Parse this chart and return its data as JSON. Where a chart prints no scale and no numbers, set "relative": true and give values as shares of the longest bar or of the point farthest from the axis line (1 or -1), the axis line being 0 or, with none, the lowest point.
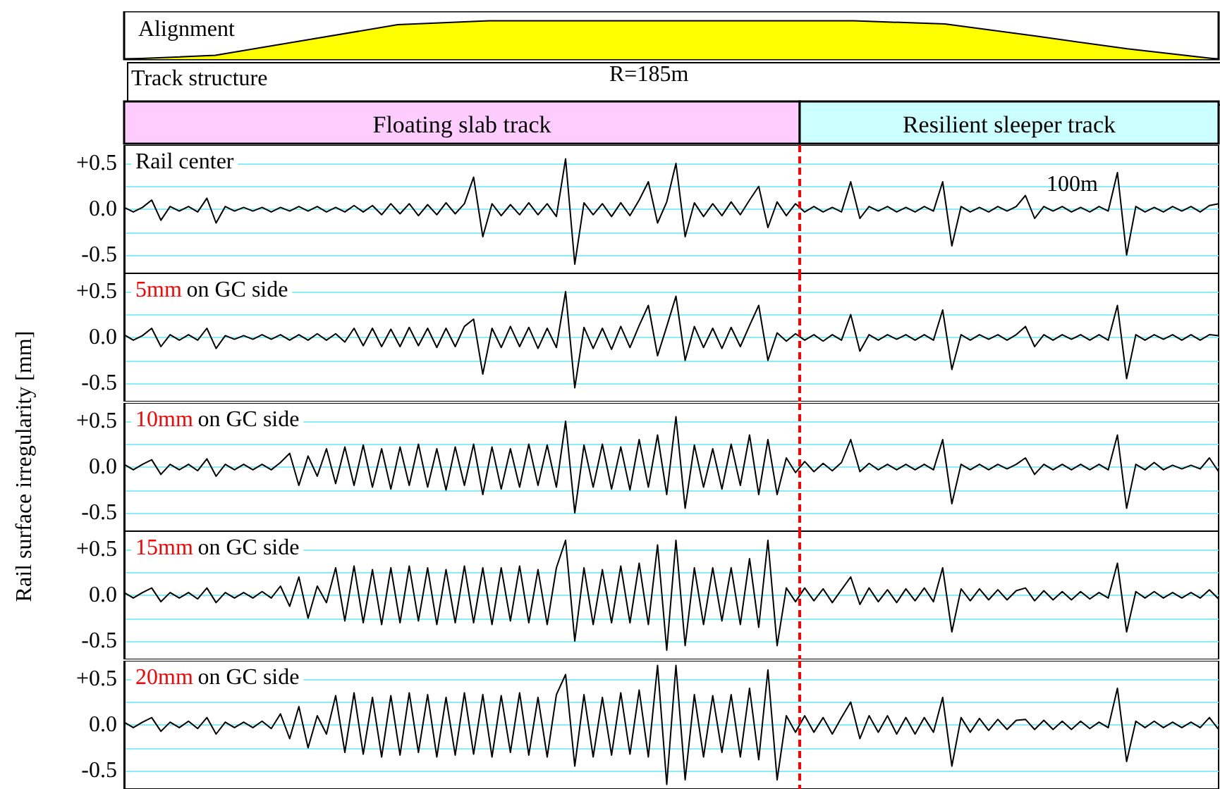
{
  "chart_data": [
    {
      "type": "area",
      "relative": true,
      "categories": [
        null,
        null,
        null,
        null,
        null,
        null,
        null,
        null,
        null,
        null,
        null,
        null,
        null
      ],
      "values": [
        0,
        0.1,
        0.5,
        0.9,
        1,
        1,
        1,
        1,
        1,
        0.92,
        0.6,
        0.27,
        0
      ],
      "color": "#ffff00",
      "annotations": [
        "Alignment",
        "Track structure",
        "R=185m",
        "Floating slab track",
        "Resilient sleeper track"
      ]
    },
    {
      "type": "line",
      "subtitle": "Rail center",
      "annotations": [
        "100m"
      ],
      "categories": [
        null,
        null,
        null,
        null,
        null,
        null,
        null,
        null,
        null,
        null,
        null,
        null,
        null,
        null,
        null,
        null,
        null,
        null,
        null,
        null,
        null,
        null,
        null,
        null,
        null,
        null,
        null,
        null,
        null,
        null,
        null,
        null,
        null,
        null,
        null,
        null,
        null,
        null,
        null,
        null,
        null,
        null,
        null,
        null,
        null,
        null,
        null,
        null,
        null,
        null,
        null,
        null,
        null,
        null,
        null,
        null,
        null,
        null,
        null,
        null,
        null,
        null,
        null,
        null,
        null,
        null,
        null,
        null,
        null,
        null,
        null,
        null,
        null,
        null,
        null,
        null,
        null,
        null,
        null,
        null,
        null,
        null,
        null,
        null,
        null,
        null,
        null,
        null,
        null,
        null,
        null,
        null,
        null,
        null,
        null,
        null,
        null,
        null,
        null,
        null,
        null,
        null,
        null,
        null,
        null,
        null,
        null,
        null,
        null,
        null,
        null,
        null,
        null,
        null,
        null,
        null,
        null,
        null,
        null,
        null
      ],
      "series": [
        {
          "color": "#000000",
          "values": [
            0.02,
            -0.03,
            0.02,
            0.1,
            -0.12,
            0.03,
            -0.02,
            0.03,
            -0.03,
            0.12,
            -0.15,
            0.03,
            -0.02,
            0.02,
            -0.02,
            0.02,
            -0.03,
            0.02,
            -0.02,
            0.03,
            -0.02,
            0.03,
            -0.03,
            0.02,
            -0.03,
            0.04,
            -0.03,
            0.04,
            -0.06,
            0.06,
            -0.05,
            0.06,
            -0.07,
            0.05,
            -0.06,
            0.07,
            -0.05,
            0.06,
            0.35,
            -0.3,
            0.06,
            -0.07,
            0.05,
            -0.06,
            0.07,
            -0.06,
            0.06,
            -0.08,
            0.55,
            -0.6,
            0.07,
            -0.06,
            0.06,
            -0.08,
            0.07,
            -0.07,
            0.1,
            0.3,
            -0.15,
            0.08,
            0.5,
            -0.3,
            0.07,
            -0.08,
            0.06,
            -0.07,
            0.08,
            -0.06,
            0.1,
            0.25,
            -0.2,
            0.08,
            -0.07,
            0.06,
            -0.03,
            0.03,
            -0.03,
            0.02,
            -0.03,
            0.3,
            -0.1,
            0.03,
            -0.02,
            0.03,
            -0.03,
            0.02,
            -0.03,
            0.03,
            -0.02,
            0.3,
            -0.4,
            0.03,
            -0.03,
            0.02,
            -0.03,
            0.03,
            -0.02,
            0.03,
            0.15,
            -0.1,
            0.03,
            -0.02,
            0.03,
            -0.03,
            0.02,
            -0.03,
            0.03,
            -0.02,
            0.4,
            -0.5,
            0.03,
            -0.03,
            0.02,
            -0.03,
            0.03,
            -0.02,
            0.03,
            -0.03,
            0.04,
            0.06
          ]
        }
      ],
      "ylim": [
        -0.7,
        0.7
      ],
      "yticks": [
        {
          "value": -0.5,
          "label": "-0.5"
        },
        {
          "value": -0.25,
          "label": null
        },
        {
          "value": 0,
          "label": "0.0"
        },
        {
          "value": 0.25,
          "label": null
        },
        {
          "value": 0.5,
          "label": "+0.5"
        }
      ],
      "grid": "y"
    },
    {
      "type": "line",
      "title": "5mm",
      "subtitle": "on GC side",
      "categories": [
        null,
        null,
        null,
        null,
        null,
        null,
        null,
        null,
        null,
        null,
        null,
        null,
        null,
        null,
        null,
        null,
        null,
        null,
        null,
        null,
        null,
        null,
        null,
        null,
        null,
        null,
        null,
        null,
        null,
        null,
        null,
        null,
        null,
        null,
        null,
        null,
        null,
        null,
        null,
        null,
        null,
        null,
        null,
        null,
        null,
        null,
        null,
        null,
        null,
        null,
        null,
        null,
        null,
        null,
        null,
        null,
        null,
        null,
        null,
        null,
        null,
        null,
        null,
        null,
        null,
        null,
        null,
        null,
        null,
        null,
        null,
        null,
        null,
        null,
        null,
        null,
        null,
        null,
        null,
        null,
        null,
        null,
        null,
        null,
        null,
        null,
        null,
        null,
        null,
        null,
        null,
        null,
        null,
        null,
        null,
        null,
        null,
        null,
        null,
        null,
        null,
        null,
        null,
        null,
        null,
        null,
        null,
        null,
        null,
        null,
        null,
        null,
        null,
        null,
        null,
        null,
        null,
        null,
        null,
        null
      ],
      "series": [
        {
          "color": "#000000",
          "values": [
            0.03,
            -0.03,
            0.02,
            0.1,
            -0.1,
            0.03,
            -0.03,
            0.03,
            -0.03,
            0.1,
            -0.12,
            0.02,
            -0.02,
            0.02,
            -0.02,
            0.03,
            -0.02,
            0.03,
            -0.03,
            0.03,
            -0.03,
            0.04,
            -0.03,
            0.04,
            -0.05,
            0.1,
            -0.09,
            0.1,
            -0.1,
            0.09,
            -0.1,
            0.11,
            -0.09,
            0.1,
            -0.11,
            0.1,
            -0.1,
            0.12,
            0.2,
            -0.4,
            0.1,
            -0.11,
            0.12,
            -0.1,
            0.11,
            -0.12,
            0.1,
            -0.11,
            0.5,
            -0.55,
            0.11,
            -0.12,
            0.1,
            -0.13,
            0.12,
            -0.11,
            0.13,
            0.35,
            -0.2,
            0.12,
            0.45,
            -0.25,
            0.12,
            -0.11,
            0.1,
            -0.12,
            0.11,
            -0.1,
            0.13,
            0.35,
            -0.25,
            0.05,
            -0.04,
            0.04,
            -0.03,
            0.03,
            -0.04,
            0.03,
            -0.03,
            0.25,
            -0.15,
            0.03,
            -0.03,
            0.03,
            -0.02,
            0.03,
            -0.03,
            0.03,
            -0.03,
            0.3,
            -0.35,
            0.03,
            -0.03,
            0.03,
            -0.02,
            0.03,
            -0.03,
            0.03,
            0.12,
            -0.1,
            0.03,
            -0.03,
            0.03,
            -0.02,
            0.03,
            -0.03,
            0.03,
            -0.03,
            0.35,
            -0.45,
            0.03,
            -0.03,
            0.03,
            -0.02,
            0.03,
            -0.03,
            0.03,
            -0.03,
            0.03,
            0.02
          ]
        }
      ],
      "ylim": [
        -0.7,
        0.7
      ],
      "yticks": [
        {
          "value": -0.5,
          "label": "-0.5"
        },
        {
          "value": -0.25,
          "label": null
        },
        {
          "value": 0,
          "label": "0.0"
        },
        {
          "value": 0.25,
          "label": null
        },
        {
          "value": 0.5,
          "label": "+0.5"
        }
      ],
      "grid": "y"
    },
    {
      "type": "line",
      "title": "10mm",
      "subtitle": "on GC side",
      "ylabel": "Rail surface irregularity [mm]",
      "categories": [
        null,
        null,
        null,
        null,
        null,
        null,
        null,
        null,
        null,
        null,
        null,
        null,
        null,
        null,
        null,
        null,
        null,
        null,
        null,
        null,
        null,
        null,
        null,
        null,
        null,
        null,
        null,
        null,
        null,
        null,
        null,
        null,
        null,
        null,
        null,
        null,
        null,
        null,
        null,
        null,
        null,
        null,
        null,
        null,
        null,
        null,
        null,
        null,
        null,
        null,
        null,
        null,
        null,
        null,
        null,
        null,
        null,
        null,
        null,
        null,
        null,
        null,
        null,
        null,
        null,
        null,
        null,
        null,
        null,
        null,
        null,
        null,
        null,
        null,
        null,
        null,
        null,
        null,
        null,
        null,
        null,
        null,
        null,
        null,
        null,
        null,
        null,
        null,
        null,
        null,
        null,
        null,
        null,
        null,
        null,
        null,
        null,
        null,
        null,
        null,
        null,
        null,
        null,
        null,
        null,
        null,
        null,
        null,
        null,
        null,
        null,
        null,
        null,
        null,
        null,
        null,
        null,
        null,
        null,
        null
      ],
      "series": [
        {
          "color": "#000000",
          "values": [
            0.03,
            -0.03,
            0.03,
            0.08,
            -0.08,
            0.03,
            -0.03,
            0.03,
            -0.04,
            0.09,
            -0.1,
            0.03,
            -0.03,
            0.03,
            -0.03,
            0.03,
            -0.03,
            0.05,
            0.15,
            -0.2,
            0.12,
            -0.1,
            0.2,
            -0.18,
            0.22,
            -0.2,
            0.24,
            -0.22,
            0.2,
            -0.24,
            0.22,
            -0.2,
            0.25,
            -0.22,
            0.2,
            -0.25,
            0.22,
            -0.2,
            0.25,
            -0.3,
            0.22,
            -0.24,
            0.2,
            -0.22,
            0.25,
            -0.2,
            0.24,
            -0.22,
            0.5,
            -0.5,
            0.24,
            -0.22,
            0.25,
            -0.24,
            0.22,
            -0.25,
            0.3,
            -0.22,
            0.35,
            -0.3,
            0.55,
            -0.45,
            0.24,
            -0.22,
            0.2,
            -0.24,
            0.25,
            -0.2,
            0.35,
            -0.3,
            0.3,
            -0.3,
            0.1,
            -0.06,
            0.06,
            -0.05,
            0.04,
            -0.04,
            0.05,
            0.3,
            -0.05,
            0.04,
            -0.03,
            0.03,
            -0.03,
            0.03,
            -0.03,
            0.03,
            -0.03,
            0.3,
            -0.4,
            0.03,
            -0.03,
            0.03,
            -0.03,
            0.03,
            -0.02,
            0.03,
            0.1,
            -0.08,
            0.03,
            -0.03,
            0.03,
            -0.03,
            0.03,
            -0.03,
            0.03,
            -0.03,
            0.35,
            -0.45,
            0.03,
            -0.03,
            0.05,
            -0.03,
            0.02,
            -0.02,
            0.02,
            -0.02,
            0.1,
            -0.05
          ]
        }
      ],
      "ylim": [
        -0.7,
        0.7
      ],
      "yticks": [
        {
          "value": -0.5,
          "label": "-0.5"
        },
        {
          "value": -0.25,
          "label": null
        },
        {
          "value": 0,
          "label": "0.0"
        },
        {
          "value": 0.25,
          "label": null
        },
        {
          "value": 0.5,
          "label": "+0.5"
        }
      ],
      "grid": "y"
    },
    {
      "type": "line",
      "title": "15mm",
      "subtitle": "on GC side",
      "categories": [
        null,
        null,
        null,
        null,
        null,
        null,
        null,
        null,
        null,
        null,
        null,
        null,
        null,
        null,
        null,
        null,
        null,
        null,
        null,
        null,
        null,
        null,
        null,
        null,
        null,
        null,
        null,
        null,
        null,
        null,
        null,
        null,
        null,
        null,
        null,
        null,
        null,
        null,
        null,
        null,
        null,
        null,
        null,
        null,
        null,
        null,
        null,
        null,
        null,
        null,
        null,
        null,
        null,
        null,
        null,
        null,
        null,
        null,
        null,
        null,
        null,
        null,
        null,
        null,
        null,
        null,
        null,
        null,
        null,
        null,
        null,
        null,
        null,
        null,
        null,
        null,
        null,
        null,
        null,
        null,
        null,
        null,
        null,
        null,
        null,
        null,
        null,
        null,
        null,
        null,
        null,
        null,
        null,
        null,
        null,
        null,
        null,
        null,
        null,
        null,
        null,
        null,
        null,
        null,
        null,
        null,
        null,
        null,
        null,
        null,
        null,
        null,
        null,
        null,
        null,
        null,
        null,
        null,
        null,
        null
      ],
      "series": [
        {
          "color": "#000000",
          "values": [
            0.03,
            -0.03,
            0.03,
            0.08,
            -0.07,
            0.03,
            -0.03,
            0.03,
            -0.04,
            0.08,
            -0.08,
            0.03,
            -0.03,
            0.03,
            -0.03,
            0.04,
            -0.03,
            0.1,
            -0.12,
            0.2,
            -0.25,
            0.1,
            -0.08,
            0.3,
            -0.28,
            0.32,
            -0.3,
            0.28,
            -0.32,
            0.3,
            -0.3,
            0.32,
            -0.28,
            0.3,
            -0.32,
            0.28,
            -0.3,
            0.32,
            -0.3,
            0.3,
            -0.32,
            0.3,
            -0.28,
            0.32,
            -0.3,
            0.28,
            -0.32,
            0.3,
            0.6,
            -0.5,
            0.3,
            -0.32,
            0.28,
            -0.3,
            0.32,
            -0.3,
            0.35,
            -0.32,
            0.55,
            -0.6,
            0.6,
            -0.55,
            0.3,
            -0.32,
            0.3,
            -0.28,
            0.3,
            -0.32,
            0.4,
            -0.35,
            0.6,
            -0.55,
            0.08,
            -0.07,
            0.08,
            -0.06,
            0.07,
            -0.08,
            0.06,
            0.2,
            -0.1,
            0.08,
            -0.07,
            0.06,
            -0.08,
            0.07,
            -0.06,
            0.08,
            -0.07,
            0.3,
            -0.4,
            0.07,
            -0.06,
            0.07,
            -0.05,
            0.06,
            -0.05,
            0.05,
            0.08,
            -0.06,
            0.05,
            -0.05,
            0.04,
            -0.05,
            0.04,
            -0.04,
            0.03,
            -0.03,
            0.35,
            -0.4,
            0.04,
            -0.03,
            0.04,
            -0.03,
            0.03,
            -0.03,
            0.03,
            -0.03,
            0.06,
            -0.04
          ]
        }
      ],
      "ylim": [
        -0.7,
        0.7
      ],
      "yticks": [
        {
          "value": -0.5,
          "label": "-0.5"
        },
        {
          "value": -0.25,
          "label": null
        },
        {
          "value": 0,
          "label": "0.0"
        },
        {
          "value": 0.25,
          "label": null
        },
        {
          "value": 0.5,
          "label": "+0.5"
        }
      ],
      "grid": "y"
    },
    {
      "type": "line",
      "title": "20mm",
      "subtitle": "on GC side",
      "categories": [
        null,
        null,
        null,
        null,
        null,
        null,
        null,
        null,
        null,
        null,
        null,
        null,
        null,
        null,
        null,
        null,
        null,
        null,
        null,
        null,
        null,
        null,
        null,
        null,
        null,
        null,
        null,
        null,
        null,
        null,
        null,
        null,
        null,
        null,
        null,
        null,
        null,
        null,
        null,
        null,
        null,
        null,
        null,
        null,
        null,
        null,
        null,
        null,
        null,
        null,
        null,
        null,
        null,
        null,
        null,
        null,
        null,
        null,
        null,
        null,
        null,
        null,
        null,
        null,
        null,
        null,
        null,
        null,
        null,
        null,
        null,
        null,
        null,
        null,
        null,
        null,
        null,
        null,
        null,
        null,
        null,
        null,
        null,
        null,
        null,
        null,
        null,
        null,
        null,
        null,
        null,
        null,
        null,
        null,
        null,
        null,
        null,
        null,
        null,
        null,
        null,
        null,
        null,
        null,
        null,
        null,
        null,
        null,
        null,
        null,
        null,
        null,
        null,
        null,
        null,
        null,
        null,
        null,
        null,
        null
      ],
      "series": [
        {
          "color": "#000000",
          "values": [
            0.03,
            -0.03,
            0.03,
            0.08,
            -0.07,
            0.03,
            -0.03,
            0.04,
            -0.04,
            0.08,
            -0.1,
            0.03,
            -0.03,
            0.03,
            -0.03,
            0.04,
            -0.04,
            0.12,
            -0.15,
            0.2,
            -0.25,
            0.1,
            -0.1,
            0.32,
            -0.3,
            0.35,
            -0.32,
            0.3,
            -0.35,
            0.32,
            -0.33,
            0.35,
            -0.3,
            0.33,
            -0.35,
            0.3,
            -0.33,
            0.35,
            -0.32,
            0.33,
            -0.35,
            0.32,
            -0.3,
            0.35,
            -0.33,
            0.3,
            -0.35,
            0.33,
            0.55,
            -0.45,
            0.33,
            -0.35,
            0.3,
            -0.33,
            0.35,
            -0.32,
            0.38,
            -0.35,
            0.65,
            -0.65,
            0.65,
            -0.6,
            0.33,
            -0.35,
            0.32,
            -0.3,
            0.33,
            -0.35,
            0.4,
            -0.38,
            0.6,
            -0.6,
            0.1,
            -0.08,
            0.1,
            -0.08,
            0.08,
            -0.1,
            0.08,
            0.25,
            -0.15,
            0.1,
            -0.08,
            0.1,
            -0.1,
            0.08,
            -0.1,
            0.08,
            -0.08,
            0.3,
            -0.45,
            0.08,
            -0.08,
            0.07,
            -0.06,
            0.06,
            -0.05,
            0.05,
            0.06,
            -0.05,
            0.05,
            -0.05,
            0.04,
            -0.05,
            0.04,
            -0.04,
            0.03,
            -0.03,
            0.4,
            -0.4,
            0.04,
            -0.03,
            0.04,
            -0.03,
            0.03,
            -0.03,
            0.03,
            -0.03,
            0.08,
            -0.05
          ]
        }
      ],
      "ylim": [
        -0.7,
        0.7
      ],
      "yticks": [
        {
          "value": -0.5,
          "label": "-0.5"
        },
        {
          "value": -0.25,
          "label": null
        },
        {
          "value": 0,
          "label": "0.0"
        },
        {
          "value": 0.25,
          "label": null
        },
        {
          "value": 0.5,
          "label": "+0.5"
        }
      ],
      "grid": "y"
    }
  ]
}
